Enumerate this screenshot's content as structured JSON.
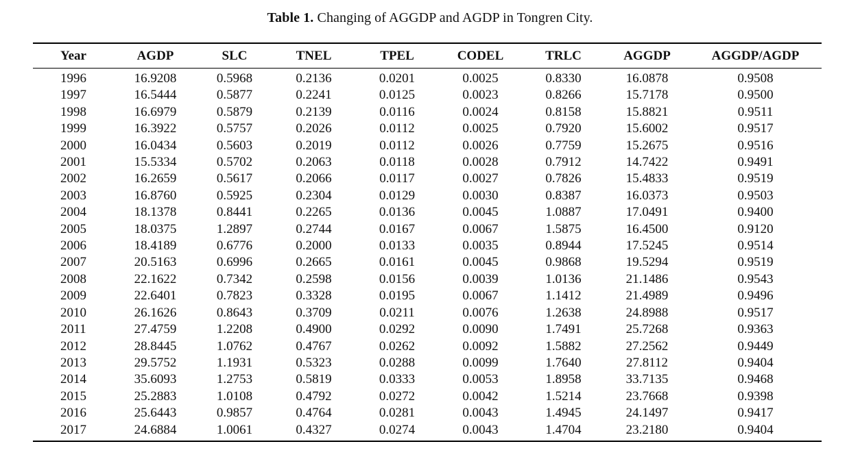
{
  "caption": {
    "label": "Table 1.",
    "text": "Changing of AGGDP and AGDP in Tongren City."
  },
  "table": {
    "columns": [
      "Year",
      "AGDP",
      "SLC",
      "TNEL",
      "TPEL",
      "CODEL",
      "TRLC",
      "AGGDP",
      "AGGDP/AGDP"
    ],
    "rows": [
      [
        "1996",
        "16.9208",
        "0.5968",
        "0.2136",
        "0.0201",
        "0.0025",
        "0.8330",
        "16.0878",
        "0.9508"
      ],
      [
        "1997",
        "16.5444",
        "0.5877",
        "0.2241",
        "0.0125",
        "0.0023",
        "0.8266",
        "15.7178",
        "0.9500"
      ],
      [
        "1998",
        "16.6979",
        "0.5879",
        "0.2139",
        "0.0116",
        "0.0024",
        "0.8158",
        "15.8821",
        "0.9511"
      ],
      [
        "1999",
        "16.3922",
        "0.5757",
        "0.2026",
        "0.0112",
        "0.0025",
        "0.7920",
        "15.6002",
        "0.9517"
      ],
      [
        "2000",
        "16.0434",
        "0.5603",
        "0.2019",
        "0.0112",
        "0.0026",
        "0.7759",
        "15.2675",
        "0.9516"
      ],
      [
        "2001",
        "15.5334",
        "0.5702",
        "0.2063",
        "0.0118",
        "0.0028",
        "0.7912",
        "14.7422",
        "0.9491"
      ],
      [
        "2002",
        "16.2659",
        "0.5617",
        "0.2066",
        "0.0117",
        "0.0027",
        "0.7826",
        "15.4833",
        "0.9519"
      ],
      [
        "2003",
        "16.8760",
        "0.5925",
        "0.2304",
        "0.0129",
        "0.0030",
        "0.8387",
        "16.0373",
        "0.9503"
      ],
      [
        "2004",
        "18.1378",
        "0.8441",
        "0.2265",
        "0.0136",
        "0.0045",
        "1.0887",
        "17.0491",
        "0.9400"
      ],
      [
        "2005",
        "18.0375",
        "1.2897",
        "0.2744",
        "0.0167",
        "0.0067",
        "1.5875",
        "16.4500",
        "0.9120"
      ],
      [
        "2006",
        "18.4189",
        "0.6776",
        "0.2000",
        "0.0133",
        "0.0035",
        "0.8944",
        "17.5245",
        "0.9514"
      ],
      [
        "2007",
        "20.5163",
        "0.6996",
        "0.2665",
        "0.0161",
        "0.0045",
        "0.9868",
        "19.5294",
        "0.9519"
      ],
      [
        "2008",
        "22.1622",
        "0.7342",
        "0.2598",
        "0.0156",
        "0.0039",
        "1.0136",
        "21.1486",
        "0.9543"
      ],
      [
        "2009",
        "22.6401",
        "0.7823",
        "0.3328",
        "0.0195",
        "0.0067",
        "1.1412",
        "21.4989",
        "0.9496"
      ],
      [
        "2010",
        "26.1626",
        "0.8643",
        "0.3709",
        "0.0211",
        "0.0076",
        "1.2638",
        "24.8988",
        "0.9517"
      ],
      [
        "2011",
        "27.4759",
        "1.2208",
        "0.4900",
        "0.0292",
        "0.0090",
        "1.7491",
        "25.7268",
        "0.9363"
      ],
      [
        "2012",
        "28.8445",
        "1.0762",
        "0.4767",
        "0.0262",
        "0.0092",
        "1.5882",
        "27.2562",
        "0.9449"
      ],
      [
        "2013",
        "29.5752",
        "1.1931",
        "0.5323",
        "0.0288",
        "0.0099",
        "1.7640",
        "27.8112",
        "0.9404"
      ],
      [
        "2014",
        "35.6093",
        "1.2753",
        "0.5819",
        "0.0333",
        "0.0053",
        "1.8958",
        "33.7135",
        "0.9468"
      ],
      [
        "2015",
        "25.2883",
        "1.0108",
        "0.4792",
        "0.0272",
        "0.0042",
        "1.5214",
        "23.7668",
        "0.9398"
      ],
      [
        "2016",
        "25.6443",
        "0.9857",
        "0.4764",
        "0.0281",
        "0.0043",
        "1.4945",
        "24.1497",
        "0.9417"
      ],
      [
        "2017",
        "24.6884",
        "1.0061",
        "0.4327",
        "0.0274",
        "0.0043",
        "1.4704",
        "23.2180",
        "0.9404"
      ]
    ]
  },
  "chart_data": {
    "type": "table",
    "title": "Table 1. Changing of AGGDP and AGDP in Tongren City.",
    "columns": [
      "Year",
      "AGDP",
      "SLC",
      "TNEL",
      "TPEL",
      "CODEL",
      "TRLC",
      "AGGDP",
      "AGGDP/AGDP"
    ],
    "rows": [
      [
        1996,
        16.9208,
        0.5968,
        0.2136,
        0.0201,
        0.0025,
        0.833,
        16.0878,
        0.9508
      ],
      [
        1997,
        16.5444,
        0.5877,
        0.2241,
        0.0125,
        0.0023,
        0.8266,
        15.7178,
        0.95
      ],
      [
        1998,
        16.6979,
        0.5879,
        0.2139,
        0.0116,
        0.0024,
        0.8158,
        15.8821,
        0.9511
      ],
      [
        1999,
        16.3922,
        0.5757,
        0.2026,
        0.0112,
        0.0025,
        0.792,
        15.6002,
        0.9517
      ],
      [
        2000,
        16.0434,
        0.5603,
        0.2019,
        0.0112,
        0.0026,
        0.7759,
        15.2675,
        0.9516
      ],
      [
        2001,
        15.5334,
        0.5702,
        0.2063,
        0.0118,
        0.0028,
        0.7912,
        14.7422,
        0.9491
      ],
      [
        2002,
        16.2659,
        0.5617,
        0.2066,
        0.0117,
        0.0027,
        0.7826,
        15.4833,
        0.9519
      ],
      [
        2003,
        16.876,
        0.5925,
        0.2304,
        0.0129,
        0.003,
        0.8387,
        16.0373,
        0.9503
      ],
      [
        2004,
        18.1378,
        0.8441,
        0.2265,
        0.0136,
        0.0045,
        1.0887,
        17.0491,
        0.94
      ],
      [
        2005,
        18.0375,
        1.2897,
        0.2744,
        0.0167,
        0.0067,
        1.5875,
        16.45,
        0.912
      ],
      [
        2006,
        18.4189,
        0.6776,
        0.2,
        0.0133,
        0.0035,
        0.8944,
        17.5245,
        0.9514
      ],
      [
        2007,
        20.5163,
        0.6996,
        0.2665,
        0.0161,
        0.0045,
        0.9868,
        19.5294,
        0.9519
      ],
      [
        2008,
        22.1622,
        0.7342,
        0.2598,
        0.0156,
        0.0039,
        1.0136,
        21.1486,
        0.9543
      ],
      [
        2009,
        22.6401,
        0.7823,
        0.3328,
        0.0195,
        0.0067,
        1.1412,
        21.4989,
        0.9496
      ],
      [
        2010,
        26.1626,
        0.8643,
        0.3709,
        0.0211,
        0.0076,
        1.2638,
        24.8988,
        0.9517
      ],
      [
        2011,
        27.4759,
        1.2208,
        0.49,
        0.0292,
        0.009,
        1.7491,
        25.7268,
        0.9363
      ],
      [
        2012,
        28.8445,
        1.0762,
        0.4767,
        0.0262,
        0.0092,
        1.5882,
        27.2562,
        0.9449
      ],
      [
        2013,
        29.5752,
        1.1931,
        0.5323,
        0.0288,
        0.0099,
        1.764,
        27.8112,
        0.9404
      ],
      [
        2014,
        35.6093,
        1.2753,
        0.5819,
        0.0333,
        0.0053,
        1.8958,
        33.7135,
        0.9468
      ],
      [
        2015,
        25.2883,
        1.0108,
        0.4792,
        0.0272,
        0.0042,
        1.5214,
        23.7668,
        0.9398
      ],
      [
        2016,
        25.6443,
        0.9857,
        0.4764,
        0.0281,
        0.0043,
        1.4945,
        24.1497,
        0.9417
      ],
      [
        2017,
        24.6884,
        1.0061,
        0.4327,
        0.0274,
        0.0043,
        1.4704,
        23.218,
        0.9404
      ]
    ]
  }
}
